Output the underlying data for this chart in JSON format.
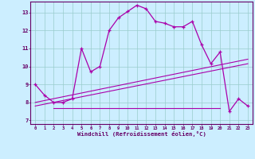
{
  "background_color": "#cceeff",
  "line_color": "#aa00aa",
  "grid_color": "#99cccc",
  "xlabel": "Windchill (Refroidissement éolien,°C)",
  "xlim": [
    -0.5,
    23.5
  ],
  "ylim": [
    6.8,
    13.6
  ],
  "yticks": [
    7,
    8,
    9,
    10,
    11,
    12,
    13
  ],
  "xticks": [
    0,
    1,
    2,
    3,
    4,
    5,
    6,
    7,
    8,
    9,
    10,
    11,
    12,
    13,
    14,
    15,
    16,
    17,
    18,
    19,
    20,
    21,
    22,
    23
  ],
  "line1_x": [
    0,
    1,
    2,
    3,
    4,
    5,
    6,
    7,
    8,
    9,
    10,
    11,
    12,
    13,
    14,
    15,
    16,
    17,
    18,
    19,
    20,
    21,
    22,
    23
  ],
  "line1_y": [
    9.0,
    8.4,
    8.0,
    8.0,
    8.2,
    11.0,
    9.7,
    10.0,
    12.0,
    12.7,
    13.05,
    13.4,
    13.2,
    12.5,
    12.4,
    12.2,
    12.2,
    12.5,
    11.2,
    10.15,
    10.8,
    7.5,
    8.2,
    7.8
  ],
  "line2_x": [
    0,
    23
  ],
  "line2_y": [
    8.0,
    10.4
  ],
  "line3_x": [
    0,
    23
  ],
  "line3_y": [
    7.8,
    10.15
  ],
  "line4_x": [
    2,
    20
  ],
  "line4_y": [
    7.7,
    7.7
  ]
}
